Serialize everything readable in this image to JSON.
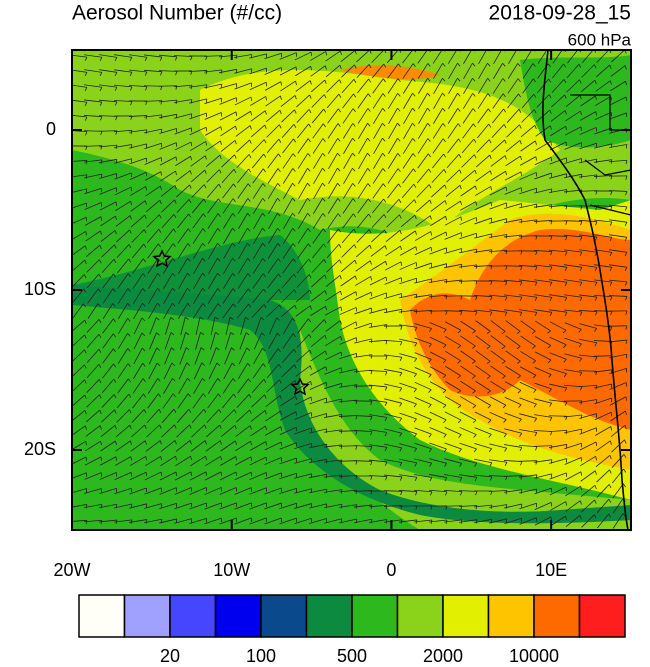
{
  "header": {
    "title": "Aerosol Number (#/cc)",
    "time": "2018-09-28_15",
    "level": "600 hPa"
  },
  "map": {
    "lon_range": [
      -20,
      15
    ],
    "lat_range": [
      -25,
      5
    ],
    "lon_ticks": [
      {
        "value": -20,
        "label": "20W"
      },
      {
        "value": -10,
        "label": "10W"
      },
      0,
      {
        "value": 10,
        "label": "10E"
      }
    ],
    "lat_ticks": [
      0,
      {
        "value": -10,
        "label": "10S"
      },
      {
        "value": -20,
        "label": "20S"
      }
    ]
  },
  "colorbar": {
    "colors": [
      "#fffff8",
      "#a0a0ff",
      "#4646ff",
      "#0000ee",
      "#0a4a8c",
      "#0b8a40",
      "#2db81e",
      "#8bd31a",
      "#e2f000",
      "#ffc400",
      "#ff6a00",
      "#ff1e1e"
    ],
    "labels": [
      20,
      100,
      500,
      2000,
      10000
    ]
  }
}
